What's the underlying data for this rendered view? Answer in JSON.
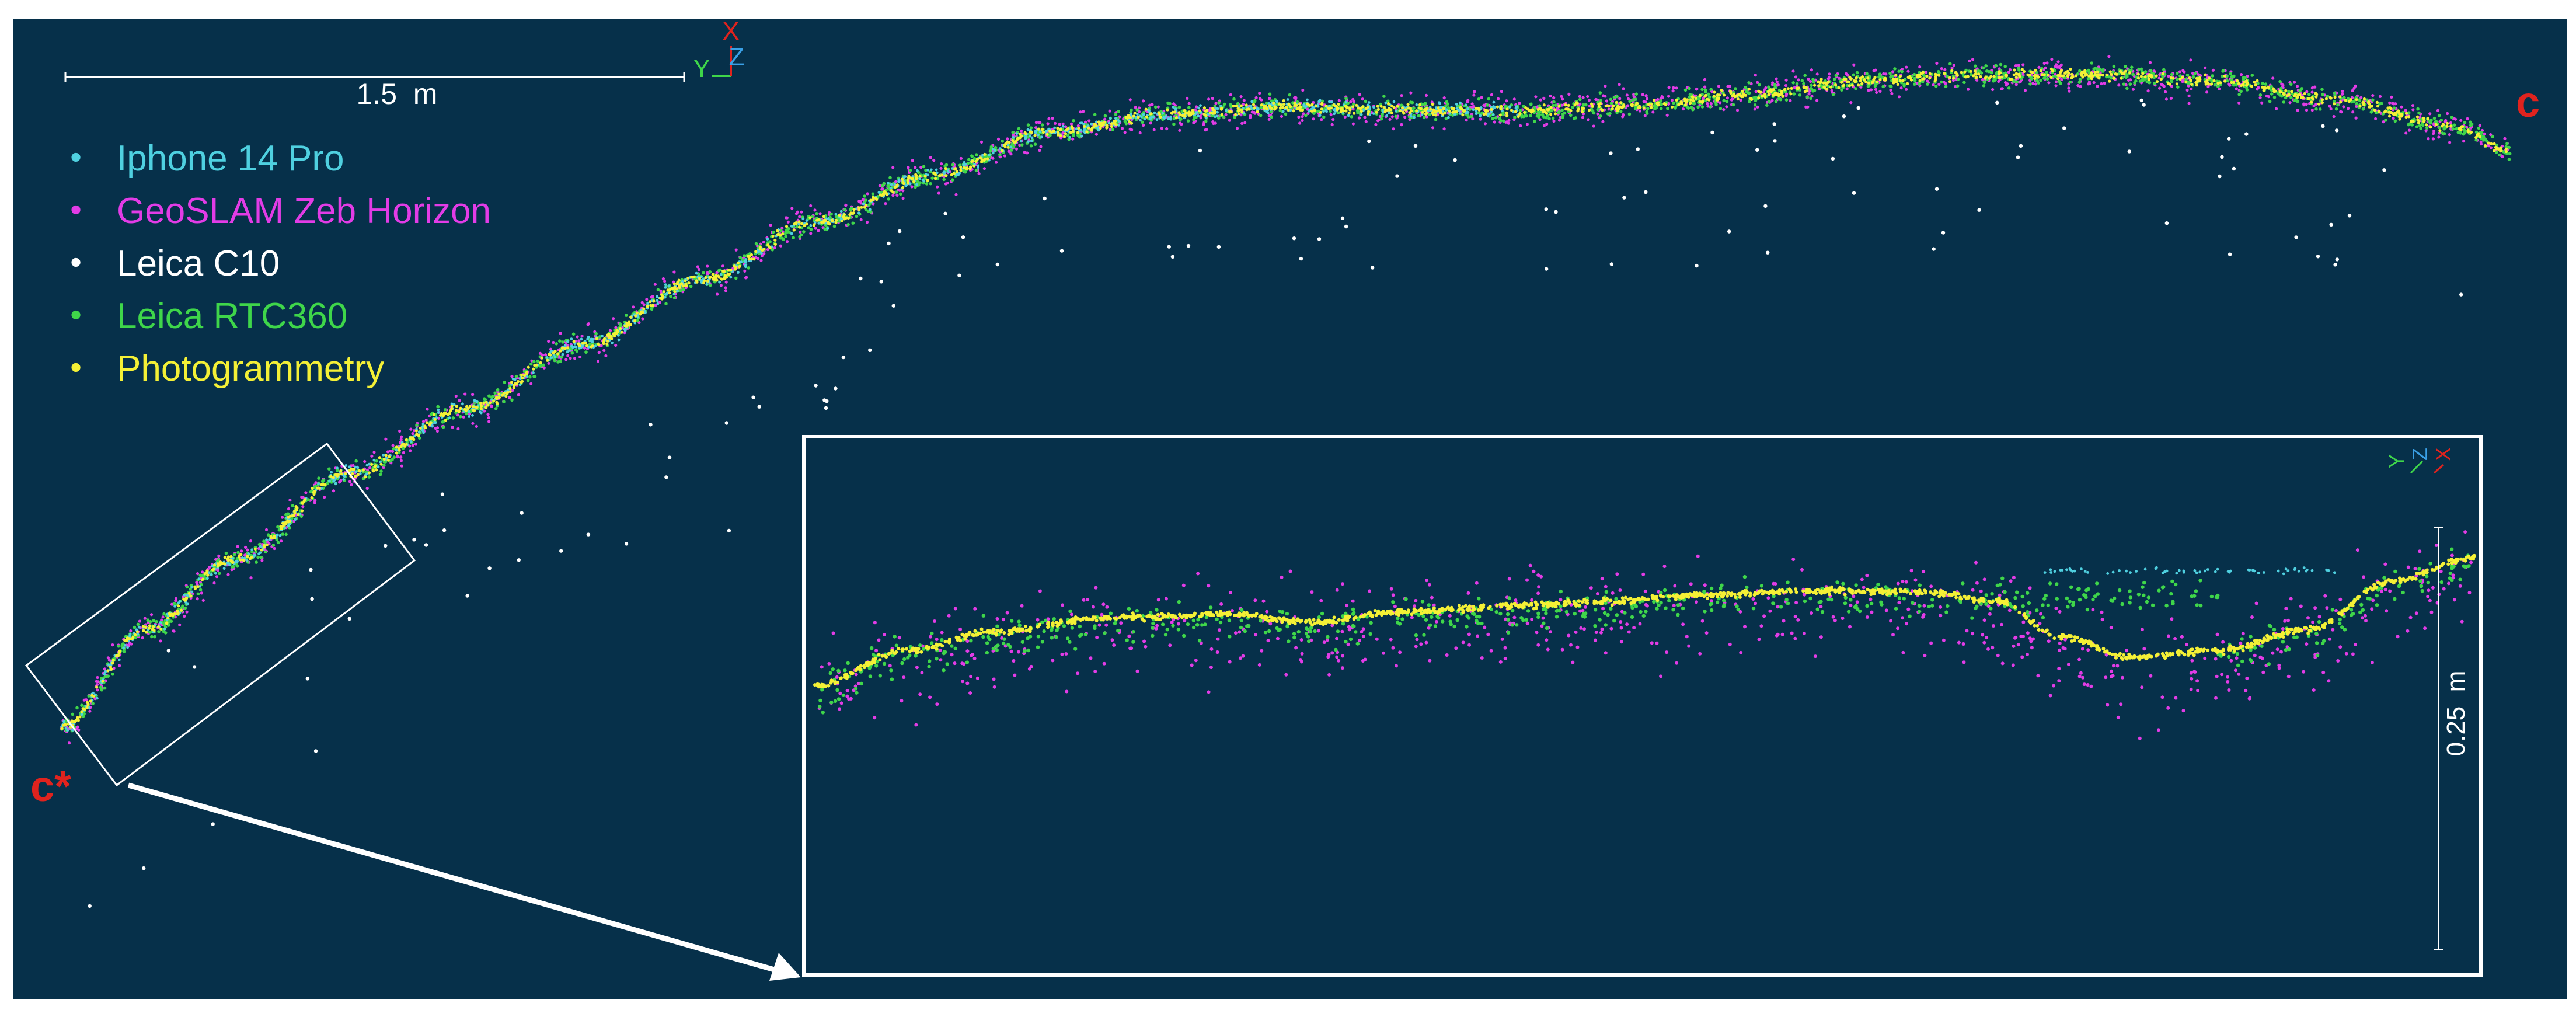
{
  "colors": {
    "background": "#06304a",
    "iphone": "#4fd0e0",
    "geoslam": "#e23ce6",
    "leica_c10": "#ffffff",
    "rtc360": "#3fd64a",
    "photogrammetry": "#f4f036",
    "marker": "#e0231e",
    "axis_x": "#e0231e",
    "axis_y": "#3fd64a",
    "axis_z": "#3aa0e6",
    "frame": "#ffffff"
  },
  "legend": [
    {
      "key": "iphone",
      "label": "Iphone 14 Pro"
    },
    {
      "key": "geoslam",
      "label": "GeoSLAM Zeb Horizon"
    },
    {
      "key": "leica_c10",
      "label": "Leica C10"
    },
    {
      "key": "rtc360",
      "label": "Leica RTC360"
    },
    {
      "key": "photogrammetry",
      "label": "Photogrammetry"
    }
  ],
  "legend_bullet": "•",
  "scale_bar": {
    "label": "1.5  m"
  },
  "inset_scale": {
    "label": "0.25  m"
  },
  "markers": {
    "start": "c*",
    "end": "c"
  },
  "axes_main": {
    "x": "X",
    "y": "Y",
    "z": "Z"
  },
  "axes_inset": {
    "x": "X",
    "y": "Y",
    "z": "Z"
  }
}
